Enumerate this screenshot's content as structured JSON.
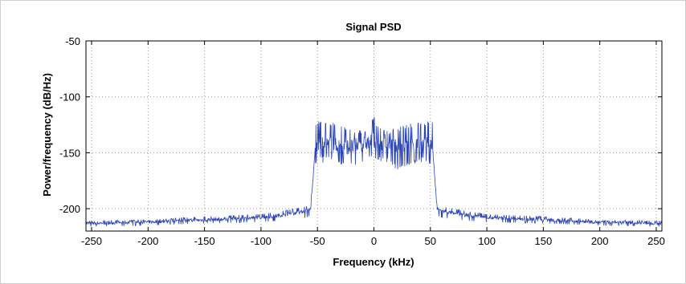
{
  "chart_data": {
    "type": "line",
    "title": "Signal PSD",
    "xlabel": "Frequency (kHz)",
    "ylabel": "Power/frequency (dB/Hz)",
    "xlim": [
      -255,
      255
    ],
    "ylim": [
      -220,
      -50
    ],
    "xticks": [
      -250,
      -200,
      -150,
      -100,
      -50,
      0,
      50,
      100,
      150,
      200,
      250
    ],
    "yticks": [
      -50,
      -100,
      -150,
      -200
    ],
    "grid": true,
    "series_color": "#2b45b5",
    "series": [
      {
        "x": [
          -255,
          -200,
          -150,
          -100,
          -75,
          -60,
          -56,
          -54,
          -52,
          -50,
          -40,
          -30,
          -20,
          -10,
          -2,
          0,
          2,
          10,
          20,
          30,
          40,
          50,
          52,
          54,
          56,
          60,
          75,
          100,
          150,
          200,
          255
        ],
        "y": [
          -213,
          -212,
          -210,
          -208,
          -205,
          -202,
          -200,
          -175,
          -145,
          -143,
          -143,
          -144,
          -145,
          -142,
          -140,
          -138,
          -140,
          -142,
          -145,
          -144,
          -143,
          -143,
          -145,
          -175,
          -200,
          -202,
          -205,
          -208,
          -210,
          -212,
          -213
        ],
        "upper": [
          -211,
          -210,
          -207,
          -205,
          -201,
          -198,
          -195,
          -170,
          -122,
          -121,
          -122,
          -124,
          -128,
          -130,
          -122,
          -115,
          -122,
          -130,
          -128,
          -124,
          -122,
          -121,
          -122,
          -170,
          -195,
          -198,
          -201,
          -205,
          -207,
          -210,
          -211
        ],
        "lower": [
          -216,
          -215,
          -213,
          -212,
          -210,
          -208,
          -206,
          -185,
          -162,
          -160,
          -158,
          -162,
          -165,
          -160,
          -158,
          -157,
          -158,
          -160,
          -165,
          -162,
          -158,
          -160,
          -162,
          -185,
          -206,
          -208,
          -210,
          -212,
          -213,
          -215,
          -216
        ]
      }
    ]
  }
}
